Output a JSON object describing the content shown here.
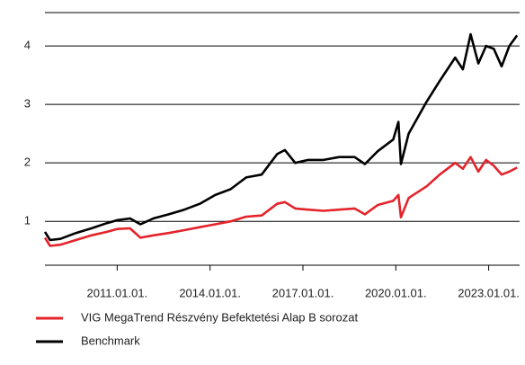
{
  "chart_data": {
    "type": "line",
    "x": [
      "2008.09.01.",
      "2008.11.01.",
      "2009.03.01.",
      "2009.09.01.",
      "2010.03.01.",
      "2010.09.01.",
      "2011.01.01.",
      "2011.06.01.",
      "2011.10.01.",
      "2012.03.01.",
      "2012.09.01.",
      "2013.03.01.",
      "2013.09.01.",
      "2014.03.01.",
      "2014.09.01.",
      "2015.03.01.",
      "2015.09.01.",
      "2016.03.01.",
      "2016.06.01.",
      "2016.10.01.",
      "2017.03.01.",
      "2017.09.01.",
      "2018.03.01.",
      "2018.09.01.",
      "2019.01.01.",
      "2019.06.01.",
      "2019.12.01.",
      "2020.02.01.",
      "2020.03.01.",
      "2020.06.01.",
      "2021.01.01.",
      "2021.06.01.",
      "2021.12.01.",
      "2022.03.01.",
      "2022.06.01.",
      "2022.09.01.",
      "2022.12.01.",
      "2023.03.01.",
      "2023.06.01.",
      "2023.09.01.",
      "2023.12.01."
    ],
    "series": [
      {
        "name": "VIG MegaTrend Részvény Befektetési Alap B sorozat",
        "color": "#e3242b",
        "values": [
          0.72,
          0.58,
          0.6,
          0.68,
          0.76,
          0.82,
          0.87,
          0.88,
          0.72,
          0.76,
          0.8,
          0.85,
          0.9,
          0.95,
          1.0,
          1.08,
          1.1,
          1.3,
          1.33,
          1.22,
          1.2,
          1.18,
          1.2,
          1.22,
          1.12,
          1.28,
          1.35,
          1.45,
          1.07,
          1.4,
          1.6,
          1.8,
          2.0,
          1.9,
          2.1,
          1.85,
          2.05,
          1.95,
          1.8,
          1.85,
          1.92
        ]
      },
      {
        "name": "Benchmark",
        "color": "#000000",
        "values": [
          0.82,
          0.68,
          0.7,
          0.8,
          0.88,
          0.97,
          1.02,
          1.05,
          0.95,
          1.05,
          1.12,
          1.2,
          1.3,
          1.45,
          1.55,
          1.75,
          1.8,
          2.15,
          2.22,
          2.0,
          2.05,
          2.05,
          2.1,
          2.1,
          1.98,
          2.2,
          2.4,
          2.7,
          1.98,
          2.5,
          3.05,
          3.4,
          3.8,
          3.6,
          4.2,
          3.7,
          4.0,
          3.95,
          3.65,
          4.0,
          4.18
        ]
      }
    ],
    "xlim": [
      "2008.09.01.",
      "2023.12.31."
    ],
    "xticks": [
      "2011.01.01.",
      "2014.01.01.",
      "2017.01.01.",
      "2020.01.01.",
      "2023.01.01."
    ],
    "ylim": [
      0.25,
      4.57
    ],
    "yticks": [
      1,
      2,
      3,
      4
    ],
    "grid": true
  }
}
